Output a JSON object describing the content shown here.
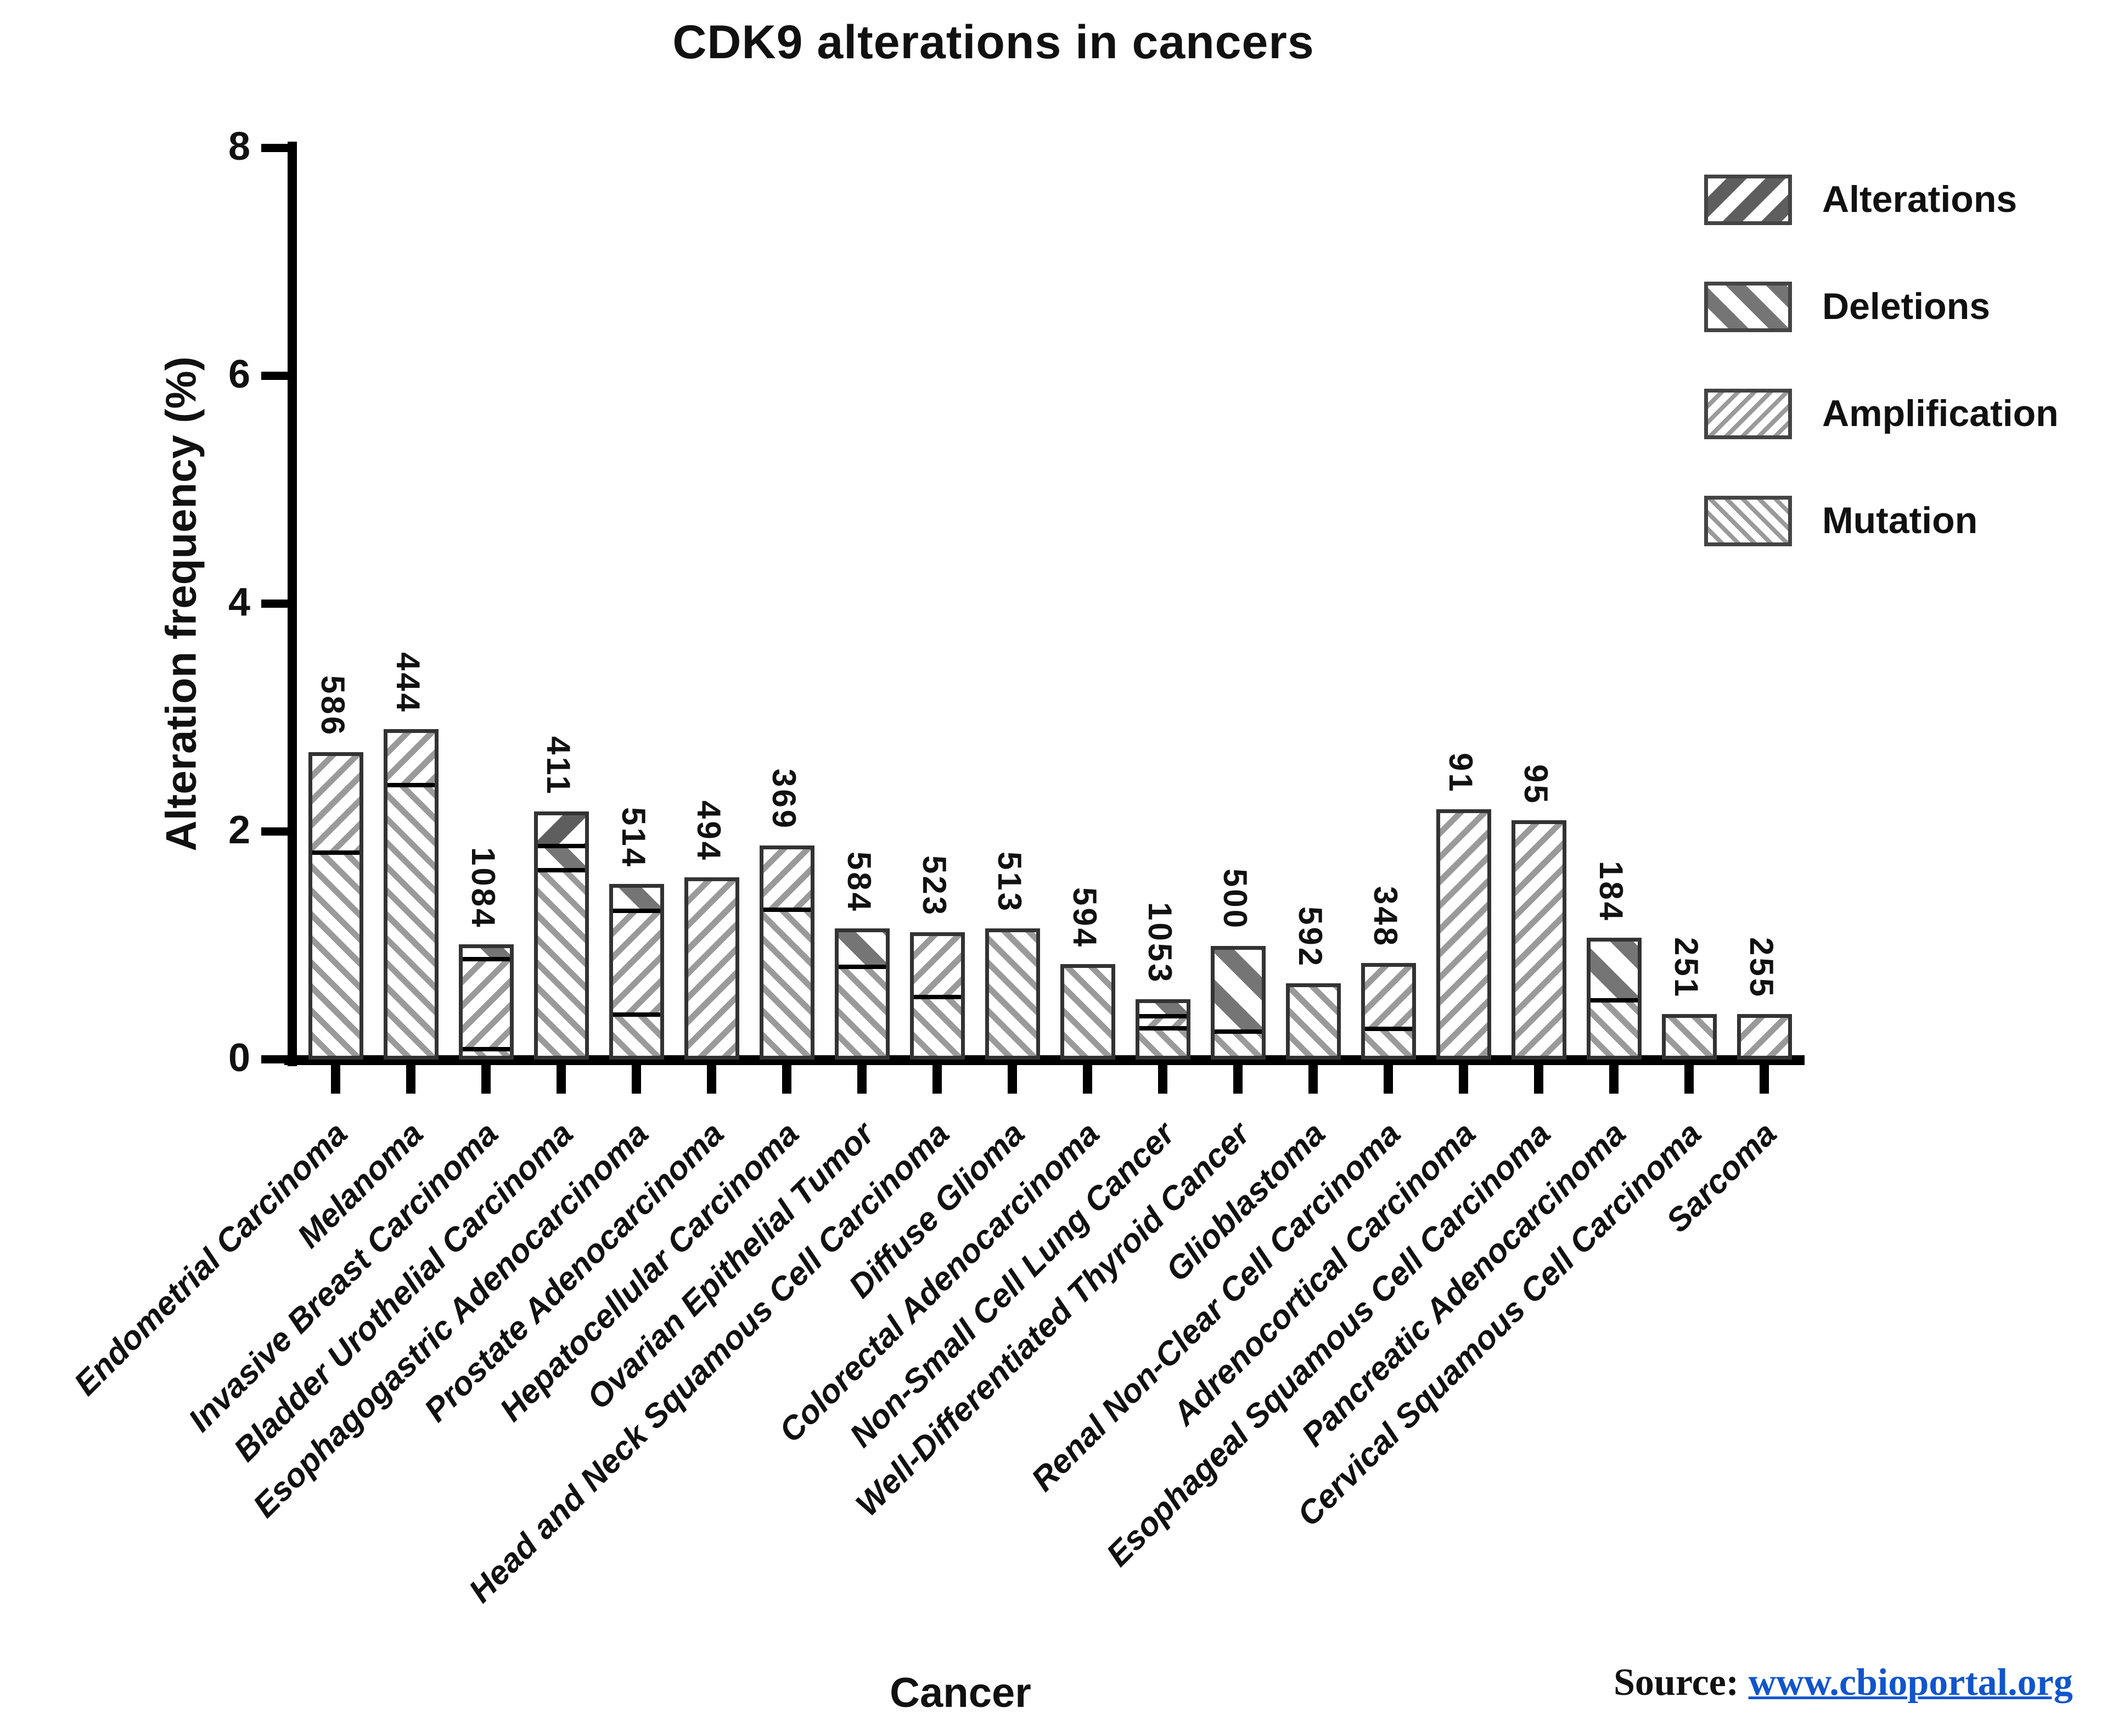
{
  "title": "CDK9 alterations in cancers",
  "y_axis": {
    "label": "Alteration frequency (%)",
    "ticks": [
      0,
      2,
      4,
      6,
      8
    ],
    "max": 8
  },
  "x_axis": {
    "label": "Cancer"
  },
  "legend": {
    "position": "top-right",
    "items": [
      {
        "key": "alterations",
        "label": "Alterations",
        "hatch": "thick-backslash"
      },
      {
        "key": "deletions",
        "label": "Deletions",
        "hatch": "thick-slash"
      },
      {
        "key": "amplification",
        "label": "Amplification",
        "hatch": "thin-backslash"
      },
      {
        "key": "mutation",
        "label": "Mutation",
        "hatch": "thin-slash"
      }
    ]
  },
  "source": {
    "prefix": "Source:",
    "link_text": "www.cbioportal.org"
  },
  "colors": {
    "hatch_thin": "#9a9a9a",
    "hatch_thick": "#6e6e6e",
    "bar_border": "#333333",
    "divider": "#000000",
    "link_blue": "#1155CC",
    "text": "#111111"
  },
  "chart_data": {
    "type": "bar",
    "stacked": true,
    "grid": false,
    "title": "CDK9 alterations in cancers",
    "xlabel": "Cancer",
    "ylabel": "Alteration frequency (%)",
    "ylim": [
      0,
      8
    ],
    "yticks": [
      0,
      2,
      4,
      6,
      8
    ],
    "categories": [
      "Endometrial Carcinoma",
      "Melanoma",
      "Invasive Breast Carcinoma",
      "Bladder Urothelial Carcinoma",
      "Esophagogastric Adenocarcinoma",
      "Prostate Adenocarcinoma",
      "Hepatocellular Carcinoma",
      "Ovarian Epithelial Tumor",
      "Head and Neck Squamous Cell Carcinoma",
      "Diffuse Glioma",
      "Colorectal Adenocarcinoma",
      "Non-Small Cell Lung Cancer",
      "Well-Differentiated Thyroid Cancer",
      "Glioblastoma",
      "Renal Non-Clear Cell Carcinoma",
      "Adrenocortical Carcinoma",
      "Esophageal Squamous Cell Carcinoma",
      "Pancreatic Adenocarcinoma",
      "Cervical Squamous Cell Carcinoma",
      "Sarcoma"
    ],
    "sample_sizes": [
      "586",
      "444",
      "1084",
      "411",
      "514",
      "494",
      "369",
      "584",
      "523",
      "513",
      "594",
      "1053",
      "500",
      "592",
      "348",
      "91",
      "95",
      "184",
      "251",
      "255"
    ],
    "bars": [
      {
        "category": "Endometrial Carcinoma",
        "n": "586",
        "total": 2.7,
        "segments": [
          {
            "type": "mutation",
            "value": 1.85
          },
          {
            "type": "amplification",
            "value": 0.85
          }
        ]
      },
      {
        "category": "Melanoma",
        "n": "444",
        "total": 2.9,
        "segments": [
          {
            "type": "mutation",
            "value": 2.45
          },
          {
            "type": "amplification",
            "value": 0.45
          }
        ]
      },
      {
        "category": "Invasive Breast Carcinoma",
        "n": "1084",
        "total": 1.01,
        "segments": [
          {
            "type": "mutation",
            "value": 0.08
          },
          {
            "type": "amplification",
            "value": 0.85
          },
          {
            "type": "deletions",
            "value": 0.08
          }
        ]
      },
      {
        "category": "Bladder Urothelial Carcinoma",
        "n": "411",
        "total": 2.18,
        "segments": [
          {
            "type": "mutation",
            "value": 1.7
          },
          {
            "type": "deletions",
            "value": 0.22
          },
          {
            "type": "alterations",
            "value": 0.26
          }
        ]
      },
      {
        "category": "Esophagogastric Adenocarcinoma",
        "n": "514",
        "total": 1.54,
        "segments": [
          {
            "type": "mutation",
            "value": 0.4
          },
          {
            "type": "amplification",
            "value": 0.95
          },
          {
            "type": "deletions",
            "value": 0.19
          }
        ]
      },
      {
        "category": "Prostate Adenocarcinoma",
        "n": "494",
        "total": 1.6,
        "segments": [
          {
            "type": "amplification",
            "value": 1.6
          }
        ]
      },
      {
        "category": "Hepatocellular Carcinoma",
        "n": "369",
        "total": 1.88,
        "segments": [
          {
            "type": "mutation",
            "value": 1.35
          },
          {
            "type": "amplification",
            "value": 0.53
          }
        ]
      },
      {
        "category": "Ovarian Epithelial Tumor",
        "n": "584",
        "total": 1.15,
        "segments": [
          {
            "type": "mutation",
            "value": 0.85
          },
          {
            "type": "deletions",
            "value": 0.3
          }
        ]
      },
      {
        "category": "Head and Neck Squamous Cell Carcinoma",
        "n": "523",
        "total": 1.12,
        "segments": [
          {
            "type": "mutation",
            "value": 0.57
          },
          {
            "type": "amplification",
            "value": 0.55
          }
        ]
      },
      {
        "category": "Diffuse Glioma",
        "n": "513",
        "total": 1.15,
        "segments": [
          {
            "type": "mutation",
            "value": 1.15
          }
        ]
      },
      {
        "category": "Colorectal Adenocarcinoma",
        "n": "594",
        "total": 0.84,
        "segments": [
          {
            "type": "mutation",
            "value": 0.84
          }
        ]
      },
      {
        "category": "Non-Small Cell Lung Cancer",
        "n": "1053",
        "total": 0.53,
        "segments": [
          {
            "type": "mutation",
            "value": 0.3
          },
          {
            "type": "amplification",
            "value": 0.12
          },
          {
            "type": "deletions",
            "value": 0.11
          }
        ]
      },
      {
        "category": "Well-Differentiated Thyroid Cancer",
        "n": "500",
        "total": 1.0,
        "segments": [
          {
            "type": "mutation",
            "value": 0.25
          },
          {
            "type": "deletions",
            "value": 0.75
          }
        ]
      },
      {
        "category": "Glioblastoma",
        "n": "592",
        "total": 0.67,
        "segments": [
          {
            "type": "mutation",
            "value": 0.67
          }
        ]
      },
      {
        "category": "Renal Non-Clear Cell Carcinoma",
        "n": "348",
        "total": 0.85,
        "segments": [
          {
            "type": "mutation",
            "value": 0.28
          },
          {
            "type": "amplification",
            "value": 0.57
          }
        ]
      },
      {
        "category": "Adrenocortical Carcinoma",
        "n": "91",
        "total": 2.2,
        "segments": [
          {
            "type": "amplification",
            "value": 2.2
          }
        ]
      },
      {
        "category": "Esophageal Squamous Cell Carcinoma",
        "n": "95",
        "total": 2.1,
        "segments": [
          {
            "type": "amplification",
            "value": 2.1
          }
        ]
      },
      {
        "category": "Pancreatic Adenocarcinoma",
        "n": "184",
        "total": 1.07,
        "segments": [
          {
            "type": "mutation",
            "value": 0.54
          },
          {
            "type": "deletions",
            "value": 0.53
          }
        ]
      },
      {
        "category": "Cervical Squamous Cell Carcinoma",
        "n": "251",
        "total": 0.4,
        "segments": [
          {
            "type": "mutation",
            "value": 0.4
          }
        ]
      },
      {
        "category": "Sarcoma",
        "n": "255",
        "total": 0.4,
        "segments": [
          {
            "type": "amplification",
            "value": 0.4
          }
        ]
      }
    ]
  }
}
